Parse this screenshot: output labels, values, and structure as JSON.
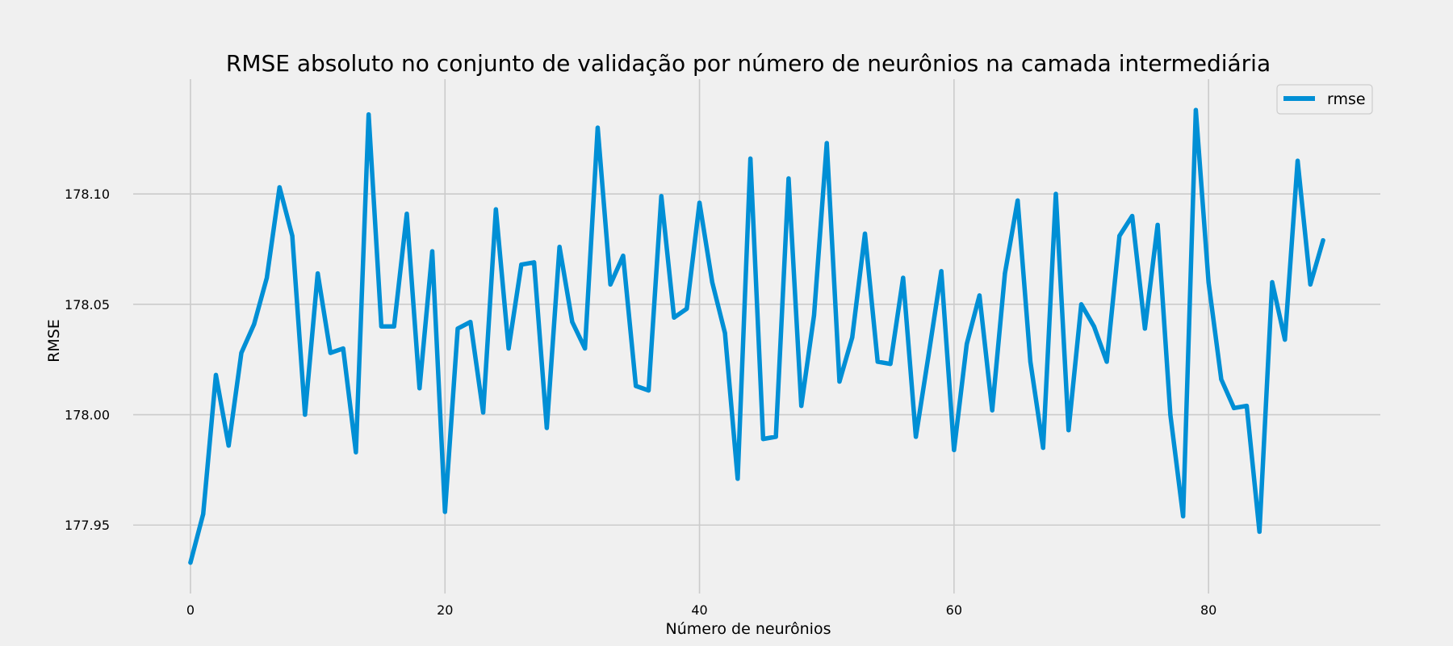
{
  "chart_data": {
    "type": "line",
    "title": "RMSE absoluto no conjunto de validação por número de neurônios na camada intermediária",
    "xlabel": "Número de neurônios",
    "ylabel": "RMSE",
    "xlim": [
      -4.5,
      93.5
    ],
    "ylim": [
      177.919,
      178.152
    ],
    "xticks": [
      0,
      20,
      40,
      60,
      80
    ],
    "yticks": [
      177.95,
      178.0,
      178.05,
      178.1
    ],
    "xtick_labels": [
      "0",
      "20",
      "40",
      "60",
      "80"
    ],
    "ytick_labels": [
      "177.95",
      "178.00",
      "178.05",
      "178.10"
    ],
    "grid": true,
    "legend_position": "top-right",
    "series": [
      {
        "name": "rmse",
        "color": "#008fd5",
        "x": [
          0,
          1,
          2,
          3,
          4,
          5,
          6,
          7,
          8,
          9,
          10,
          11,
          12,
          13,
          14,
          15,
          16,
          17,
          18,
          19,
          20,
          21,
          22,
          23,
          24,
          25,
          26,
          27,
          28,
          29,
          30,
          31,
          32,
          33,
          34,
          35,
          36,
          37,
          38,
          39,
          40,
          41,
          42,
          43,
          44,
          45,
          46,
          47,
          48,
          49,
          50,
          51,
          52,
          53,
          54,
          55,
          56,
          57,
          58,
          59,
          60,
          61,
          62,
          63,
          64,
          65,
          66,
          67,
          68,
          69,
          70,
          71,
          72,
          73,
          74,
          75,
          76,
          77,
          78,
          79,
          80,
          81,
          82,
          83,
          84,
          85,
          86,
          87,
          88,
          89
        ],
        "values": [
          177.933,
          177.955,
          178.018,
          177.986,
          178.028,
          178.041,
          178.062,
          178.103,
          178.081,
          178.0,
          178.064,
          178.028,
          178.03,
          177.983,
          178.136,
          178.04,
          178.04,
          178.091,
          178.012,
          178.074,
          177.956,
          178.039,
          178.042,
          178.001,
          178.093,
          178.03,
          178.068,
          178.069,
          177.994,
          178.076,
          178.042,
          178.03,
          178.13,
          178.059,
          178.072,
          178.013,
          178.011,
          178.099,
          178.044,
          178.048,
          178.096,
          178.06,
          178.037,
          177.971,
          178.116,
          177.989,
          177.99,
          178.107,
          178.004,
          178.045,
          178.123,
          178.015,
          178.035,
          178.082,
          178.024,
          178.023,
          178.062,
          177.99,
          178.027,
          178.065,
          177.984,
          178.032,
          178.054,
          178.002,
          178.064,
          178.097,
          178.024,
          177.985,
          178.1,
          177.993,
          178.05,
          178.04,
          178.024,
          178.081,
          178.09,
          178.039,
          178.086,
          178.0,
          177.954,
          178.138,
          178.06,
          178.016,
          178.003,
          178.004,
          177.947,
          178.06,
          178.034,
          178.115,
          178.059,
          178.079
        ]
      }
    ]
  }
}
